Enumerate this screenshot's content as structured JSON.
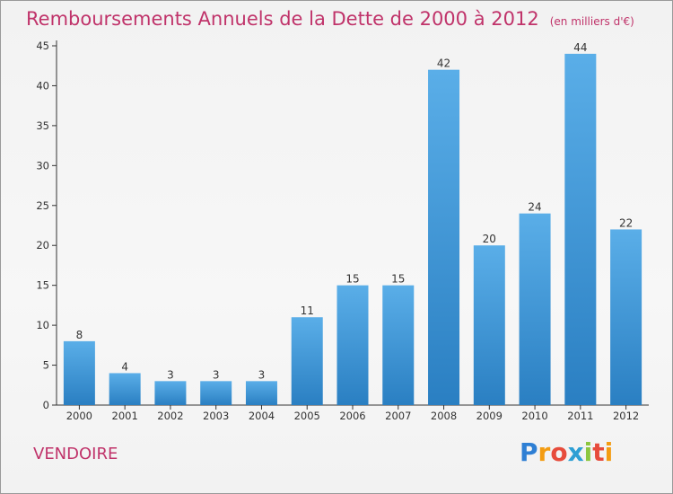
{
  "chart_data": {
    "type": "bar",
    "title": "Remboursements Annuels de la Dette de 2000 à 2012",
    "unit_label": "(en milliers d'€)",
    "categories": [
      "2000",
      "2001",
      "2002",
      "2003",
      "2004",
      "2005",
      "2006",
      "2007",
      "2008",
      "2009",
      "2010",
      "2011",
      "2012"
    ],
    "values": [
      8,
      4,
      3,
      3,
      3,
      11,
      15,
      15,
      42,
      20,
      24,
      44,
      22
    ],
    "ylim": [
      0,
      45
    ],
    "yticks": [
      0,
      5,
      10,
      15,
      20,
      25,
      30,
      35,
      40,
      45
    ],
    "grid": false,
    "bar_color_top": "#5aaee8",
    "bar_color_bottom": "#2a7fc2",
    "data_labels": true
  },
  "footer": {
    "location": "VENDOIRE"
  },
  "logo": {
    "text": "Proxiti",
    "letters": [
      {
        "char": "P",
        "color": "#2e7fd4"
      },
      {
        "char": "r",
        "color": "#f39c12"
      },
      {
        "char": "o",
        "color": "#e74c3c"
      },
      {
        "char": "x",
        "color": "#2e9fd4"
      },
      {
        "char": "i",
        "color": "#8cc63f"
      },
      {
        "char": "t",
        "color": "#e74c3c"
      },
      {
        "char": "i",
        "color": "#f39c12"
      }
    ]
  },
  "colors": {
    "title": "#c0336a",
    "axis": "#333333"
  }
}
